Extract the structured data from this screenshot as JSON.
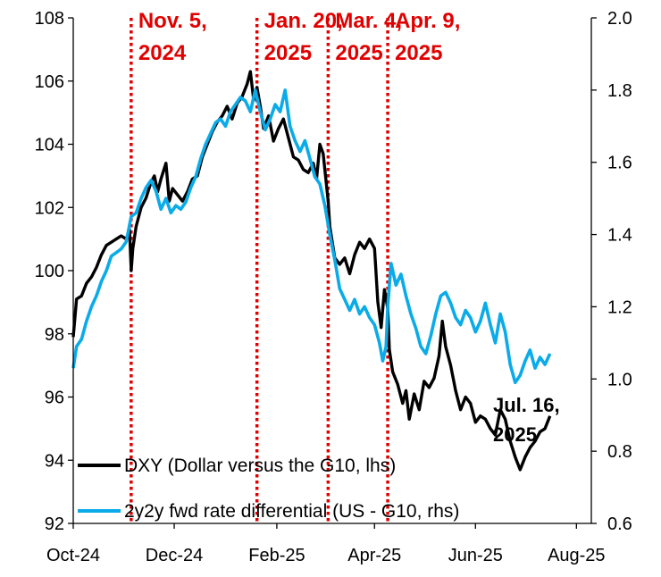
{
  "chart_data": {
    "type": "line",
    "title": "",
    "xlabel": "",
    "ylabel_left": "",
    "ylabel_right": "",
    "x_ticks": [
      "Oct-24",
      "Dec-24",
      "Feb-25",
      "Apr-25",
      "Jun-25",
      "Aug-25"
    ],
    "x_ticks_dates": [
      "2024-10-01",
      "2024-12-01",
      "2025-02-01",
      "2025-04-01",
      "2025-06-01",
      "2025-08-01"
    ],
    "xlim": [
      "2024-10-01",
      "2025-08-10"
    ],
    "ylim_left": [
      92,
      108
    ],
    "yticks_left": [
      "92",
      "94",
      "96",
      "98",
      "100",
      "102",
      "104",
      "106",
      "108"
    ],
    "ylim_right": [
      0.6,
      2.0
    ],
    "yticks_right": [
      "0.6",
      "0.8",
      "1.0",
      "1.2",
      "1.4",
      "1.6",
      "1.8",
      "2.0"
    ],
    "grid": false,
    "legend_position": "bottom-left",
    "events": [
      {
        "date": "2024-11-05",
        "label_line1": "Nov. 5,",
        "label_line2": "2024"
      },
      {
        "date": "2025-01-20",
        "label_line1": "Jan. 20,",
        "label_line2": "2025"
      },
      {
        "date": "2025-03-04",
        "label_line1": "Mar. 4,",
        "label_line2": "2025"
      },
      {
        "date": "2025-04-09",
        "label_line1": "Apr. 9,",
        "label_line2": "2025"
      }
    ],
    "end_annotation": {
      "line1": "Jul. 16,",
      "line2": "2025"
    },
    "series": [
      {
        "name": "DXY (Dollar versus the G10, lhs)",
        "axis": "left",
        "color": "#000000",
        "points": [
          [
            "2024-10-01",
            97.9
          ],
          [
            "2024-10-03",
            99.1
          ],
          [
            "2024-10-06",
            99.2
          ],
          [
            "2024-10-09",
            99.6
          ],
          [
            "2024-10-12",
            99.8
          ],
          [
            "2024-10-15",
            100.1
          ],
          [
            "2024-10-18",
            100.5
          ],
          [
            "2024-10-21",
            100.8
          ],
          [
            "2024-10-24",
            100.9
          ],
          [
            "2024-10-27",
            101.0
          ],
          [
            "2024-10-30",
            101.1
          ],
          [
            "2024-11-02",
            101.0
          ],
          [
            "2024-11-04",
            101.3
          ],
          [
            "2024-11-05",
            100.0
          ],
          [
            "2024-11-06",
            100.7
          ],
          [
            "2024-11-08",
            101.4
          ],
          [
            "2024-11-11",
            102.0
          ],
          [
            "2024-11-14",
            102.3
          ],
          [
            "2024-11-17",
            102.8
          ],
          [
            "2024-11-19",
            103.0
          ],
          [
            "2024-11-21",
            102.5
          ],
          [
            "2024-11-23",
            102.9
          ],
          [
            "2024-11-26",
            103.4
          ],
          [
            "2024-11-28",
            102.2
          ],
          [
            "2024-11-30",
            102.6
          ],
          [
            "2024-12-03",
            102.4
          ],
          [
            "2024-12-06",
            102.2
          ],
          [
            "2024-12-09",
            102.5
          ],
          [
            "2024-12-12",
            102.9
          ],
          [
            "2024-12-15",
            103.0
          ],
          [
            "2024-12-18",
            103.6
          ],
          [
            "2024-12-21",
            104.0
          ],
          [
            "2024-12-24",
            104.4
          ],
          [
            "2024-12-27",
            104.7
          ],
          [
            "2024-12-30",
            104.9
          ],
          [
            "2025-01-02",
            105.2
          ],
          [
            "2025-01-05",
            104.8
          ],
          [
            "2025-01-08",
            105.3
          ],
          [
            "2025-01-11",
            105.5
          ],
          [
            "2025-01-14",
            105.9
          ],
          [
            "2025-01-16",
            106.3
          ],
          [
            "2025-01-18",
            105.4
          ],
          [
            "2025-01-20",
            105.8
          ],
          [
            "2025-01-22",
            105.2
          ],
          [
            "2025-01-24",
            104.5
          ],
          [
            "2025-01-27",
            104.9
          ],
          [
            "2025-01-30",
            104.1
          ],
          [
            "2025-02-02",
            104.5
          ],
          [
            "2025-02-05",
            104.8
          ],
          [
            "2025-02-08",
            104.2
          ],
          [
            "2025-02-11",
            103.6
          ],
          [
            "2025-02-14",
            103.5
          ],
          [
            "2025-02-17",
            103.2
          ],
          [
            "2025-02-20",
            103.1
          ],
          [
            "2025-02-23",
            103.4
          ],
          [
            "2025-02-25",
            102.9
          ],
          [
            "2025-02-27",
            104.0
          ],
          [
            "2025-03-01",
            103.7
          ],
          [
            "2025-03-04",
            102.2
          ],
          [
            "2025-03-05",
            101.4
          ],
          [
            "2025-03-08",
            100.4
          ],
          [
            "2025-03-11",
            100.2
          ],
          [
            "2025-03-14",
            100.4
          ],
          [
            "2025-03-17",
            99.9
          ],
          [
            "2025-03-20",
            100.5
          ],
          [
            "2025-03-23",
            100.9
          ],
          [
            "2025-03-26",
            100.7
          ],
          [
            "2025-03-29",
            101.0
          ],
          [
            "2025-04-01",
            100.7
          ],
          [
            "2025-04-03",
            99.0
          ],
          [
            "2025-04-05",
            98.2
          ],
          [
            "2025-04-07",
            99.4
          ],
          [
            "2025-04-09",
            98.8
          ],
          [
            "2025-04-10",
            97.5
          ],
          [
            "2025-04-12",
            96.8
          ],
          [
            "2025-04-15",
            96.4
          ],
          [
            "2025-04-18",
            95.8
          ],
          [
            "2025-04-20",
            96.2
          ],
          [
            "2025-04-22",
            95.3
          ],
          [
            "2025-04-25",
            96.1
          ],
          [
            "2025-04-28",
            95.6
          ],
          [
            "2025-05-01",
            96.5
          ],
          [
            "2025-05-04",
            96.3
          ],
          [
            "2025-05-07",
            96.6
          ],
          [
            "2025-05-10",
            97.3
          ],
          [
            "2025-05-12",
            98.4
          ],
          [
            "2025-05-14",
            97.6
          ],
          [
            "2025-05-17",
            97.0
          ],
          [
            "2025-05-20",
            96.2
          ],
          [
            "2025-05-23",
            95.6
          ],
          [
            "2025-05-26",
            96.0
          ],
          [
            "2025-05-29",
            95.8
          ],
          [
            "2025-06-01",
            95.2
          ],
          [
            "2025-06-04",
            95.4
          ],
          [
            "2025-06-07",
            95.3
          ],
          [
            "2025-06-10",
            95.0
          ],
          [
            "2025-06-13",
            94.8
          ],
          [
            "2025-06-16",
            95.6
          ],
          [
            "2025-06-19",
            95.3
          ],
          [
            "2025-06-22",
            94.6
          ],
          [
            "2025-06-25",
            94.1
          ],
          [
            "2025-06-28",
            93.7
          ],
          [
            "2025-07-01",
            94.1
          ],
          [
            "2025-07-04",
            94.4
          ],
          [
            "2025-07-07",
            94.6
          ],
          [
            "2025-07-10",
            94.9
          ],
          [
            "2025-07-13",
            95.0
          ],
          [
            "2025-07-16",
            95.4
          ]
        ]
      },
      {
        "name": "2y2y fwd rate differential (US - G10, rhs)",
        "axis": "right",
        "color": "#0aabe8",
        "points": [
          [
            "2024-10-01",
            1.03
          ],
          [
            "2024-10-03",
            1.09
          ],
          [
            "2024-10-06",
            1.11
          ],
          [
            "2024-10-09",
            1.16
          ],
          [
            "2024-10-12",
            1.2
          ],
          [
            "2024-10-15",
            1.23
          ],
          [
            "2024-10-18",
            1.27
          ],
          [
            "2024-10-21",
            1.3
          ],
          [
            "2024-10-24",
            1.34
          ],
          [
            "2024-10-27",
            1.35
          ],
          [
            "2024-10-30",
            1.36
          ],
          [
            "2024-11-02",
            1.38
          ],
          [
            "2024-11-05",
            1.45
          ],
          [
            "2024-11-08",
            1.46
          ],
          [
            "2024-11-11",
            1.5
          ],
          [
            "2024-11-14",
            1.53
          ],
          [
            "2024-11-17",
            1.55
          ],
          [
            "2024-11-20",
            1.52
          ],
          [
            "2024-11-23",
            1.47
          ],
          [
            "2024-11-26",
            1.5
          ],
          [
            "2024-11-29",
            1.46
          ],
          [
            "2024-12-02",
            1.48
          ],
          [
            "2024-12-05",
            1.47
          ],
          [
            "2024-12-08",
            1.49
          ],
          [
            "2024-12-11",
            1.53
          ],
          [
            "2024-12-14",
            1.56
          ],
          [
            "2024-12-17",
            1.61
          ],
          [
            "2024-12-20",
            1.65
          ],
          [
            "2024-12-23",
            1.68
          ],
          [
            "2024-12-26",
            1.71
          ],
          [
            "2024-12-29",
            1.72
          ],
          [
            "2025-01-01",
            1.7
          ],
          [
            "2025-01-04",
            1.74
          ],
          [
            "2025-01-07",
            1.76
          ],
          [
            "2025-01-10",
            1.78
          ],
          [
            "2025-01-13",
            1.77
          ],
          [
            "2025-01-16",
            1.74
          ],
          [
            "2025-01-19",
            1.8
          ],
          [
            "2025-01-22",
            1.74
          ],
          [
            "2025-01-25",
            1.69
          ],
          [
            "2025-01-28",
            1.72
          ],
          [
            "2025-01-31",
            1.76
          ],
          [
            "2025-02-03",
            1.74
          ],
          [
            "2025-02-06",
            1.8
          ],
          [
            "2025-02-09",
            1.7
          ],
          [
            "2025-02-12",
            1.66
          ],
          [
            "2025-02-15",
            1.63
          ],
          [
            "2025-02-18",
            1.66
          ],
          [
            "2025-02-21",
            1.61
          ],
          [
            "2025-02-24",
            1.56
          ],
          [
            "2025-02-27",
            1.54
          ],
          [
            "2025-03-02",
            1.48
          ],
          [
            "2025-03-05",
            1.4
          ],
          [
            "2025-03-08",
            1.33
          ],
          [
            "2025-03-11",
            1.25
          ],
          [
            "2025-03-14",
            1.22
          ],
          [
            "2025-03-17",
            1.19
          ],
          [
            "2025-03-20",
            1.22
          ],
          [
            "2025-03-23",
            1.18
          ],
          [
            "2025-03-26",
            1.2
          ],
          [
            "2025-03-29",
            1.17
          ],
          [
            "2025-04-01",
            1.15
          ],
          [
            "2025-04-04",
            1.1
          ],
          [
            "2025-04-06",
            1.05
          ],
          [
            "2025-04-08",
            1.09
          ],
          [
            "2025-04-09",
            1.2
          ],
          [
            "2025-04-11",
            1.32
          ],
          [
            "2025-04-14",
            1.26
          ],
          [
            "2025-04-17",
            1.29
          ],
          [
            "2025-04-20",
            1.23
          ],
          [
            "2025-04-23",
            1.18
          ],
          [
            "2025-04-26",
            1.14
          ],
          [
            "2025-04-29",
            1.09
          ],
          [
            "2025-05-02",
            1.07
          ],
          [
            "2025-05-05",
            1.12
          ],
          [
            "2025-05-08",
            1.18
          ],
          [
            "2025-05-11",
            1.23
          ],
          [
            "2025-05-14",
            1.24
          ],
          [
            "2025-05-17",
            1.21
          ],
          [
            "2025-05-20",
            1.17
          ],
          [
            "2025-05-23",
            1.15
          ],
          [
            "2025-05-26",
            1.19
          ],
          [
            "2025-05-29",
            1.17
          ],
          [
            "2025-06-01",
            1.13
          ],
          [
            "2025-06-04",
            1.16
          ],
          [
            "2025-06-07",
            1.21
          ],
          [
            "2025-06-10",
            1.15
          ],
          [
            "2025-06-13",
            1.1
          ],
          [
            "2025-06-16",
            1.18
          ],
          [
            "2025-06-19",
            1.13
          ],
          [
            "2025-06-22",
            1.04
          ],
          [
            "2025-06-25",
            0.99
          ],
          [
            "2025-06-28",
            1.01
          ],
          [
            "2025-07-01",
            1.05
          ],
          [
            "2025-07-04",
            1.08
          ],
          [
            "2025-07-07",
            1.03
          ],
          [
            "2025-07-10",
            1.06
          ],
          [
            "2025-07-13",
            1.04
          ],
          [
            "2025-07-16",
            1.07
          ]
        ]
      }
    ]
  }
}
